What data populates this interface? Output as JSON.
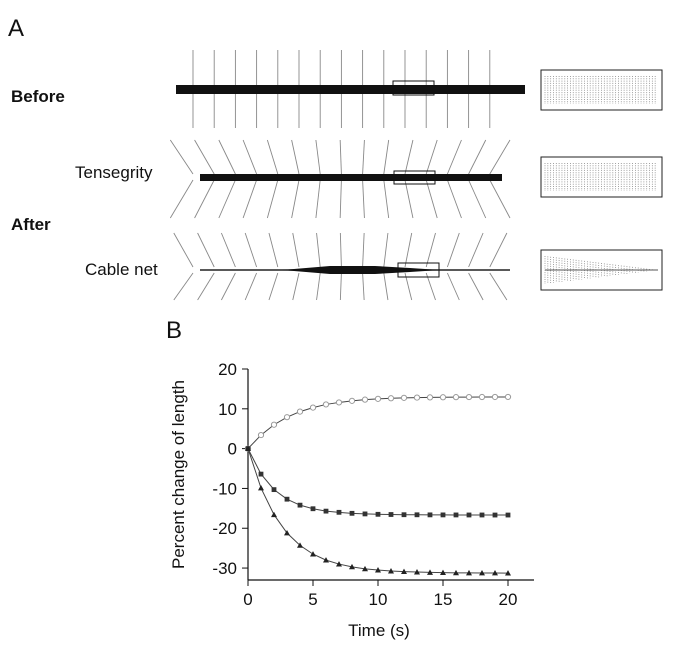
{
  "panels": {
    "a_label": "A",
    "b_label": "B"
  },
  "rows": {
    "before": "Before",
    "after": "After",
    "tensegrity": "Tensegrity",
    "cable_net": "Cable net"
  },
  "chart_data": {
    "type": "line",
    "xlabel": "Time (s)",
    "ylabel": "Percent change of length",
    "xlim": [
      0,
      22
    ],
    "ylim": [
      -33,
      20
    ],
    "xticks": [
      0,
      5,
      10,
      15,
      20
    ],
    "yticks": [
      20,
      10,
      0,
      -10,
      -20,
      -30
    ],
    "grid": false,
    "series": [
      {
        "marker": "circle-open",
        "color": "#9a9a9a",
        "x": [
          0,
          1,
          2,
          3,
          4,
          5,
          6,
          7,
          8,
          9,
          10,
          11,
          12,
          13,
          14,
          15,
          16,
          17,
          18,
          19,
          20
        ],
        "y": [
          0,
          3.4,
          6.0,
          7.9,
          9.3,
          10.3,
          11.1,
          11.6,
          12.0,
          12.3,
          12.5,
          12.65,
          12.75,
          12.82,
          12.87,
          12.9,
          12.93,
          12.95,
          12.96,
          12.97,
          12.98
        ]
      },
      {
        "marker": "square-filled",
        "color": "#333333",
        "x": [
          0,
          1,
          2,
          3,
          4,
          5,
          6,
          7,
          8,
          9,
          10,
          11,
          12,
          13,
          14,
          15,
          16,
          17,
          18,
          19,
          20
        ],
        "y": [
          0,
          -6.4,
          -10.3,
          -12.7,
          -14.2,
          -15.1,
          -15.7,
          -16.0,
          -16.25,
          -16.4,
          -16.5,
          -16.55,
          -16.6,
          -16.62,
          -16.64,
          -16.65,
          -16.66,
          -16.67,
          -16.67,
          -16.68,
          -16.68
        ]
      },
      {
        "marker": "triangle-filled",
        "color": "#222222",
        "x": [
          0,
          1,
          2,
          3,
          4,
          5,
          6,
          7,
          8,
          9,
          10,
          11,
          12,
          13,
          14,
          15,
          16,
          17,
          18,
          19,
          20
        ],
        "y": [
          0,
          -9.9,
          -16.6,
          -21.2,
          -24.3,
          -26.5,
          -28.0,
          -29.0,
          -29.7,
          -30.2,
          -30.5,
          -30.75,
          -30.9,
          -31.0,
          -31.1,
          -31.15,
          -31.2,
          -31.22,
          -31.24,
          -31.25,
          -31.26
        ]
      }
    ]
  }
}
